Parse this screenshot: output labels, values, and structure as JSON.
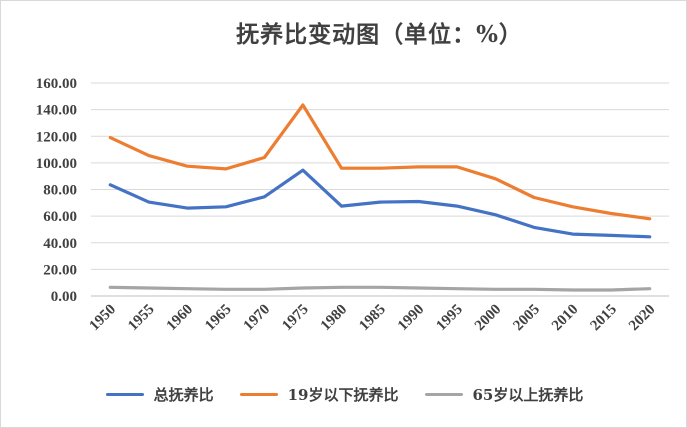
{
  "chart_data": {
    "type": "line",
    "title": "抚养比变动图（单位：%）",
    "xlabel": "",
    "ylabel": "",
    "ylim": [
      0,
      160
    ],
    "y_ticks": [
      "0.00",
      "20.00",
      "40.00",
      "60.00",
      "80.00",
      "100.00",
      "120.00",
      "140.00",
      "160.00"
    ],
    "grid": true,
    "legend_position": "bottom",
    "categories": [
      "1950",
      "1955",
      "1960",
      "1965",
      "1970",
      "1975",
      "1980",
      "1985",
      "1990",
      "1995",
      "2000",
      "2005",
      "2010",
      "2015",
      "2020"
    ],
    "series": [
      {
        "name": "总抚养比",
        "color": "#4472C4",
        "values": [
          83.5,
          70.5,
          66.0,
          67.0,
          74.5,
          94.5,
          67.5,
          70.5,
          71.0,
          67.5,
          61.0,
          51.5,
          46.5,
          45.5,
          44.5
        ]
      },
      {
        "name": "19岁以下抚养比",
        "color": "#ED7D31",
        "values": [
          119.0,
          105.5,
          97.5,
          95.5,
          104.0,
          143.5,
          96.0,
          96.0,
          97.0,
          97.0,
          88.0,
          74.0,
          67.0,
          62.0,
          58.0
        ]
      },
      {
        "name": "65岁以上抚养比",
        "color": "#A5A5A5",
        "values": [
          6.5,
          6.0,
          5.5,
          5.0,
          5.0,
          6.0,
          6.5,
          6.5,
          6.0,
          5.5,
          5.0,
          5.0,
          4.5,
          4.5,
          5.5
        ]
      }
    ]
  }
}
